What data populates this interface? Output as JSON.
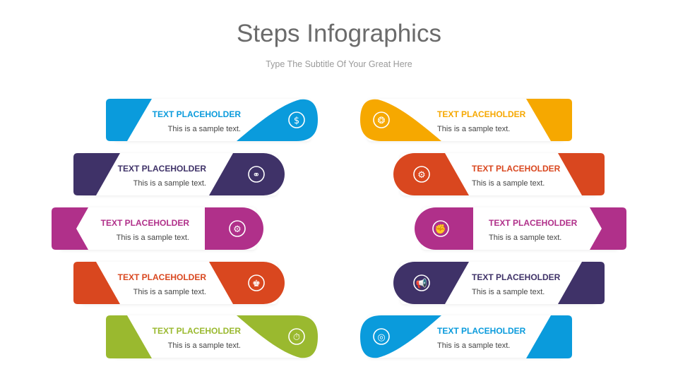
{
  "title": "Steps Infographics",
  "subtitle": "Type The Subtitle Of Your Great Here",
  "left": [
    {
      "title": "TEXT PLACEHOLDER",
      "text": "This is a sample text.",
      "color": "#0a9bdc",
      "icon": "money-plant-icon"
    },
    {
      "title": "TEXT PLACEHOLDER",
      "text": "This is a sample text.",
      "color": "#3f3268",
      "icon": "chain-link-icon"
    },
    {
      "title": "TEXT PLACEHOLDER",
      "text": "This is a sample text.",
      "color": "#b0308a",
      "icon": "gear-wrench-icon"
    },
    {
      "title": "TEXT PLACEHOLDER",
      "text": "This is a sample text.",
      "color": "#d9471f",
      "icon": "chess-king-icon"
    },
    {
      "title": "TEXT PLACEHOLDER",
      "text": "This is a sample text.",
      "color": "#9ab92f",
      "icon": "stopwatch-icon"
    }
  ],
  "right": [
    {
      "title": "TEXT PLACEHOLDER",
      "text": "This is a sample text.",
      "color": "#f6a800",
      "icon": "brain-bulb-icon"
    },
    {
      "title": "TEXT PLACEHOLDER",
      "text": "This is a sample text.",
      "color": "#d9471f",
      "icon": "gear-icon"
    },
    {
      "title": "TEXT PLACEHOLDER",
      "text": "This is a sample text.",
      "color": "#b0308a",
      "icon": "fist-idea-icon"
    },
    {
      "title": "TEXT PLACEHOLDER",
      "text": "This is a sample text.",
      "color": "#3f3268",
      "icon": "megaphone-icon"
    },
    {
      "title": "TEXT PLACEHOLDER",
      "text": "This is a sample text.",
      "color": "#0a9bdc",
      "icon": "target-user-icon"
    }
  ]
}
